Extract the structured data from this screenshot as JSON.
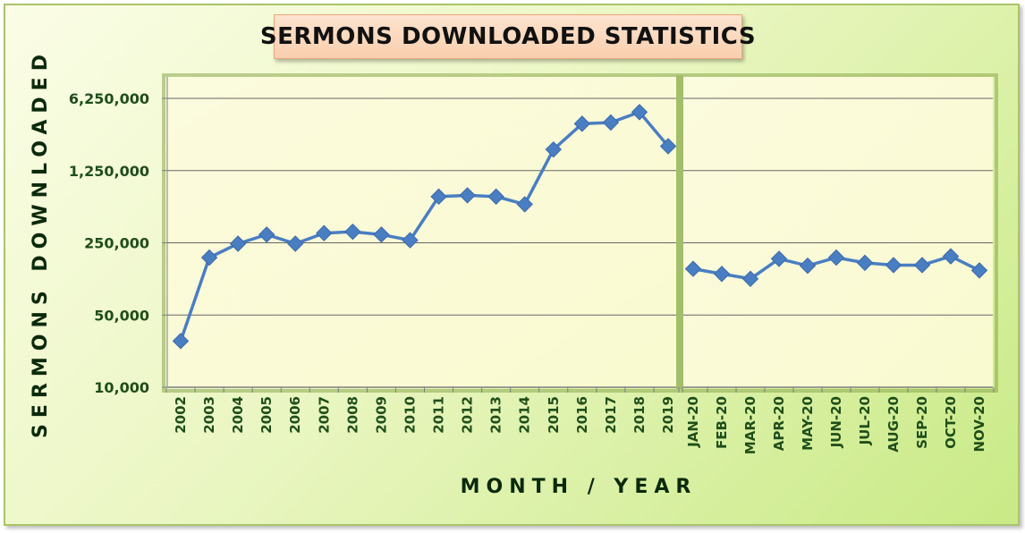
{
  "chart_data": {
    "type": "line",
    "title": "SERMONS DOWNLOADED STATISTICS",
    "xlabel": "MONTH / YEAR",
    "ylabel": "SERMONS DOWNLOADED",
    "y_scale": "log",
    "ylim": [
      10000,
      6250000
    ],
    "y_ticks": [
      10000,
      50000,
      250000,
      1250000,
      6250000
    ],
    "y_tick_labels": [
      "10,000",
      "50,000",
      "250,000",
      "1,250,000",
      "6,250,000"
    ],
    "grid": "horizontal",
    "legend": "none",
    "colors": {
      "series": "#4a7ec2",
      "grid": "#666666",
      "axis": "#808080",
      "divider": "#a3be6a"
    },
    "panels": [
      {
        "name": "years",
        "categories": [
          "2002",
          "2003",
          "2004",
          "2005",
          "2006",
          "2007",
          "2008",
          "2009",
          "2010",
          "2011",
          "2012",
          "2013",
          "2014",
          "2015",
          "2016",
          "2017",
          "2018",
          "2019"
        ],
        "values": [
          28000,
          180000,
          245000,
          300000,
          245000,
          310000,
          320000,
          300000,
          265000,
          700000,
          720000,
          700000,
          590000,
          2000000,
          3550000,
          3650000,
          4600000,
          2150000
        ]
      },
      {
        "name": "months-2020",
        "categories": [
          "JAN-20",
          "FEB-20",
          "MAR-20",
          "APR-20",
          "MAY-20",
          "JUN-20",
          "JUL-20",
          "AUG-20",
          "SEP-20",
          "OCT-20",
          "NOV-20"
        ],
        "values": [
          140000,
          125000,
          112000,
          175000,
          150000,
          180000,
          160000,
          152000,
          152000,
          185000,
          135000
        ]
      }
    ]
  }
}
